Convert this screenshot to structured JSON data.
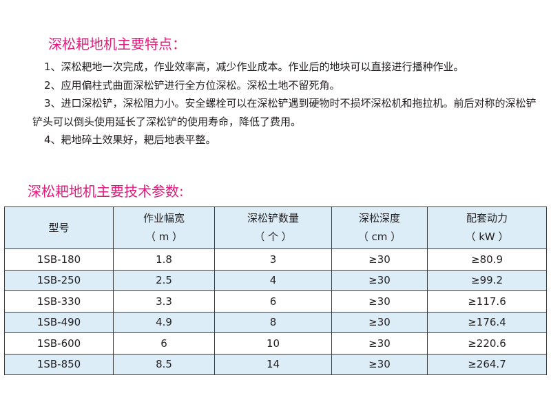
{
  "features": {
    "title": "深松耙地机主要特点：",
    "items": [
      "1、深松耙地一次完成，作业效率高，减少作业成本。作业后的地块可以直接进行播种作业。",
      "2、应用偏柱式曲面深松铲进行全方位深松。深松土地不留死角。",
      "3、进口深松铲，深松阻力小。安全螺栓可以在深松铲遇到硬物时不损坏深松机和拖拉机。前后对称的深松铲铲头可以倒头使用延长了深松铲的使用寿命，降低了费用。",
      "4、耙地碎土效果好，耙后地表平整。"
    ]
  },
  "params": {
    "title": "深松耙地机主要技术参数:",
    "headers": [
      {
        "name": "型号",
        "unit": ""
      },
      {
        "name": "作业幅宽",
        "unit": "（ m ）"
      },
      {
        "name": "深松铲数量",
        "unit": "（ 个 ）"
      },
      {
        "name": "深松深度",
        "unit": "（ cm ）"
      },
      {
        "name": "配套动力",
        "unit": "（ kW ）"
      }
    ],
    "rows": [
      [
        "1SB-180",
        "1.8",
        "3",
        "≥30",
        "≥80.9"
      ],
      [
        "1SB-250",
        "2.5",
        "4",
        "≥30",
        "≥99.2"
      ],
      [
        "1SB-330",
        "3.3",
        "6",
        "≥30",
        "≥117.6"
      ],
      [
        "1SB-490",
        "4.9",
        "8",
        "≥30",
        "≥176.4"
      ],
      [
        "1SB-600",
        "6",
        "10",
        "≥30",
        "≥220.6"
      ],
      [
        "1SB-850",
        "8.5",
        "14",
        "≥30",
        "≥264.7"
      ]
    ]
  },
  "colors": {
    "title": "#e4197c",
    "header_bg": "#dcedf8"
  }
}
